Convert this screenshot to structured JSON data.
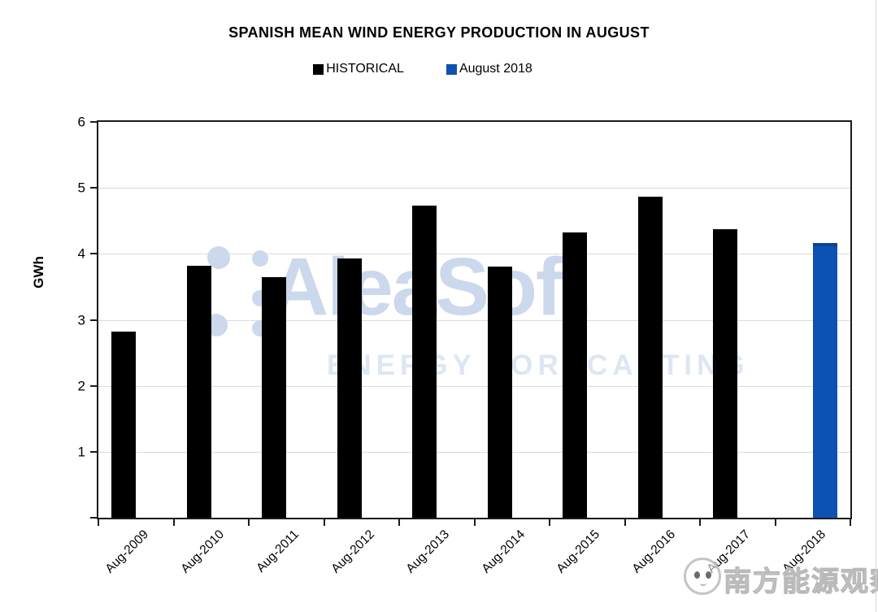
{
  "title": "SPANISH MEAN WIND ENERGY PRODUCTION IN AUGUST",
  "legend": {
    "items": [
      {
        "label": "HISTORICAL",
        "color": "#000000"
      },
      {
        "label": "August 2018",
        "color": "#0d52b2"
      }
    ]
  },
  "chart_data": {
    "type": "bar",
    "title": "SPANISH MEAN WIND ENERGY PRODUCTION IN AUGUST",
    "categories": [
      "Aug-2009",
      "Aug-2010",
      "Aug-2011",
      "Aug-2012",
      "Aug-2013",
      "Aug-2014",
      "Aug-2015",
      "Aug-2016",
      "Aug-2017",
      "Aug-2018"
    ],
    "series": [
      {
        "name": "HISTORICAL",
        "color": "#000000",
        "values": [
          2.82,
          3.82,
          3.65,
          3.93,
          4.73,
          3.81,
          4.32,
          4.87,
          4.38,
          null
        ]
      },
      {
        "name": "August 2018",
        "color": "#0d52b2",
        "values": [
          null,
          null,
          null,
          null,
          null,
          null,
          null,
          null,
          null,
          4.17
        ]
      }
    ],
    "xlabel": "",
    "ylabel": "GWh",
    "ylim": [
      0,
      6
    ],
    "yticks": [
      1,
      2,
      3,
      4,
      5,
      6
    ],
    "grid": true,
    "legend_position": "top",
    "bar_colors": {
      "historical": "#000000",
      "august_2018": "#0d52b2"
    },
    "gridline_color": "#dcdcdc"
  },
  "watermarks": {
    "aleasoft_text": "AleaSoft",
    "aleasoft_subtext": "ENERGY FORECASTING",
    "aleasoft_color": "#ccd8ec",
    "publisher_text": "南方能源观察"
  }
}
